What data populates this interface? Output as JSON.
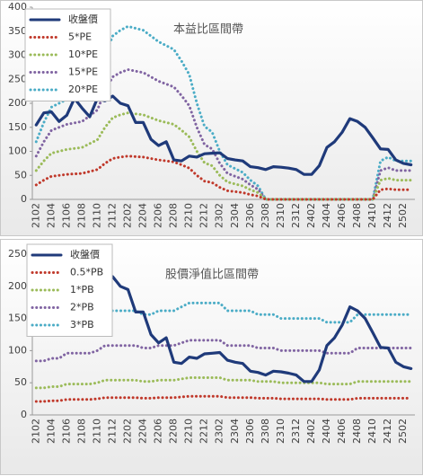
{
  "chart_data": [
    {
      "type": "line",
      "title": "本益比區間帶",
      "categories": [
        "2102",
        null,
        "2104",
        null,
        "2106",
        null,
        "2108",
        null,
        "2110",
        null,
        "2112",
        null,
        "2202",
        null,
        "2204",
        null,
        "2206",
        null,
        "2208",
        null,
        "2210",
        null,
        "2212",
        null,
        "2302",
        null,
        "2304",
        null,
        "2306",
        null,
        "2308",
        null,
        "2310",
        null,
        "2312",
        null,
        "2402",
        null,
        "2404",
        null,
        "2406",
        null,
        "2408",
        null,
        "2410",
        null,
        "2412",
        null,
        "2502",
        null
      ],
      "ylim": [
        0,
        400
      ],
      "yticks": [
        0,
        50,
        100,
        150,
        200,
        250,
        300,
        350,
        400
      ],
      "grid": false,
      "series": [
        {
          "name": "收盤價",
          "color": "#1f3a7a",
          "values": [
            155,
            180,
            182,
            162,
            175,
            210,
            190,
            172,
            210,
            205,
            215,
            200,
            195,
            160,
            160,
            125,
            112,
            120,
            82,
            80,
            90,
            88,
            95,
            96,
            97,
            85,
            82,
            80,
            68,
            66,
            62,
            68,
            67,
            65,
            62,
            52,
            52,
            70,
            108,
            120,
            140,
            168,
            162,
            150,
            128,
            105,
            104,
            82,
            75,
            72
          ]
        },
        {
          "name": "5*PE",
          "color": "#c0392b",
          "values": [
            30,
            40,
            48,
            50,
            52,
            53,
            54,
            58,
            62,
            75,
            85,
            88,
            90,
            89,
            88,
            85,
            82,
            80,
            78,
            72,
            65,
            50,
            38,
            35,
            25,
            18,
            16,
            14,
            10,
            7,
            0,
            0,
            0,
            0,
            0,
            0,
            0,
            0,
            0,
            0,
            0,
            0,
            0,
            0,
            0,
            20,
            22,
            20,
            20,
            20
          ]
        },
        {
          "name": "10*PE",
          "color": "#9bbb59",
          "values": [
            60,
            80,
            96,
            100,
            104,
            106,
            108,
            116,
            124,
            150,
            170,
            176,
            180,
            178,
            176,
            170,
            164,
            160,
            156,
            144,
            130,
            100,
            76,
            70,
            50,
            36,
            32,
            28,
            20,
            14,
            0,
            0,
            0,
            0,
            0,
            0,
            0,
            0,
            0,
            0,
            0,
            0,
            0,
            0,
            0,
            40,
            44,
            40,
            40,
            40
          ]
        },
        {
          "name": "15*PE",
          "color": "#8064a2",
          "values": [
            90,
            120,
            144,
            150,
            156,
            159,
            162,
            174,
            186,
            225,
            255,
            264,
            270,
            267,
            264,
            255,
            246,
            240,
            234,
            216,
            195,
            150,
            114,
            105,
            75,
            54,
            48,
            42,
            30,
            21,
            0,
            0,
            0,
            0,
            0,
            0,
            0,
            0,
            0,
            0,
            0,
            0,
            0,
            0,
            0,
            60,
            66,
            60,
            60,
            60
          ]
        },
        {
          "name": "20*PE",
          "color": "#4bacc6",
          "values": [
            120,
            160,
            192,
            200,
            208,
            212,
            216,
            232,
            248,
            300,
            340,
            352,
            360,
            356,
            352,
            340,
            328,
            320,
            312,
            288,
            260,
            200,
            152,
            140,
            100,
            72,
            64,
            56,
            40,
            28,
            0,
            0,
            0,
            0,
            0,
            0,
            0,
            0,
            0,
            0,
            0,
            0,
            0,
            0,
            0,
            80,
            88,
            80,
            80,
            80
          ]
        }
      ]
    },
    {
      "type": "line",
      "title": "股價淨值比區間帶",
      "categories": [
        "2102",
        null,
        "2104",
        null,
        "2106",
        null,
        "2108",
        null,
        "2110",
        null,
        "2112",
        null,
        "2202",
        null,
        "2204",
        null,
        "2206",
        null,
        "2208",
        null,
        "2210",
        null,
        "2212",
        null,
        "2302",
        null,
        "2304",
        null,
        "2306",
        null,
        "2308",
        null,
        "2310",
        null,
        "2312",
        null,
        "2402",
        null,
        "2404",
        null,
        "2406",
        null,
        "2408",
        null,
        "2410",
        null,
        "2412",
        null,
        "2502",
        null
      ],
      "ylim": [
        0,
        250
      ],
      "yticks": [
        0,
        50,
        100,
        150,
        200,
        250
      ],
      "grid": false,
      "series": [
        {
          "name": "收盤價",
          "color": "#1f3a7a",
          "values": [
            155,
            180,
            182,
            162,
            175,
            210,
            190,
            172,
            210,
            205,
            215,
            200,
            195,
            160,
            160,
            125,
            112,
            120,
            82,
            80,
            90,
            88,
            95,
            96,
            97,
            85,
            82,
            80,
            68,
            66,
            62,
            68,
            67,
            65,
            62,
            52,
            52,
            70,
            108,
            120,
            140,
            168,
            162,
            150,
            128,
            105,
            104,
            82,
            75,
            72
          ]
        },
        {
          "name": "0.5*PB",
          "color": "#c0392b",
          "values": [
            21,
            21,
            22,
            22,
            24,
            24,
            24,
            24,
            25,
            27,
            27,
            27,
            27,
            27,
            26,
            26,
            27,
            27,
            27,
            28,
            29,
            29,
            29,
            29,
            29,
            27,
            27,
            27,
            27,
            26,
            26,
            26,
            25,
            25,
            25,
            25,
            25,
            25,
            24,
            24,
            24,
            24,
            26,
            26,
            26,
            26,
            26,
            26,
            26,
            26
          ]
        },
        {
          "name": "1*PB",
          "color": "#9bbb59",
          "values": [
            42,
            42,
            44,
            44,
            48,
            48,
            48,
            48,
            50,
            54,
            54,
            54,
            54,
            54,
            52,
            52,
            54,
            54,
            54,
            56,
            58,
            58,
            58,
            58,
            58,
            54,
            54,
            54,
            54,
            52,
            52,
            52,
            50,
            50,
            50,
            50,
            50,
            50,
            48,
            48,
            48,
            48,
            52,
            52,
            52,
            52,
            52,
            52,
            52,
            52
          ]
        },
        {
          "name": "2*PB",
          "color": "#8064a2",
          "values": [
            84,
            84,
            88,
            88,
            96,
            96,
            96,
            96,
            100,
            108,
            108,
            108,
            108,
            108,
            104,
            104,
            108,
            108,
            108,
            112,
            116,
            116,
            116,
            116,
            116,
            108,
            108,
            108,
            108,
            104,
            104,
            104,
            100,
            100,
            100,
            100,
            100,
            100,
            96,
            96,
            96,
            96,
            104,
            104,
            104,
            104,
            104,
            104,
            104,
            104
          ]
        },
        {
          "name": "3*PB",
          "color": "#4bacc6",
          "values": [
            126,
            126,
            132,
            132,
            144,
            144,
            144,
            144,
            150,
            162,
            162,
            162,
            162,
            162,
            156,
            156,
            162,
            162,
            162,
            168,
            174,
            174,
            174,
            174,
            174,
            162,
            162,
            162,
            162,
            156,
            156,
            156,
            150,
            150,
            150,
            150,
            150,
            150,
            144,
            144,
            144,
            144,
            156,
            156,
            156,
            156,
            156,
            156,
            156,
            156
          ]
        }
      ]
    }
  ]
}
